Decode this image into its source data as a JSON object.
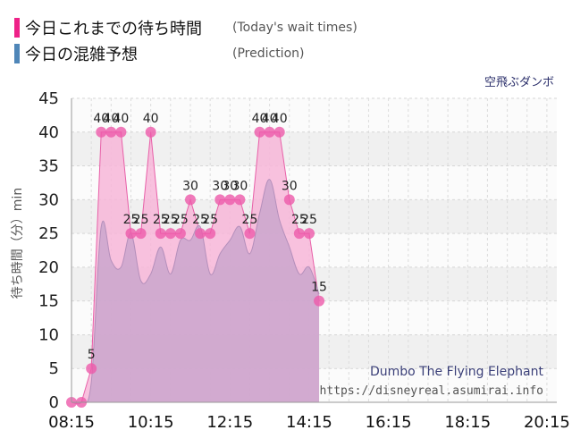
{
  "legend": [
    {
      "label": "今日これまでの待ち時間",
      "note": "(Today's wait times)",
      "color": "#ee2288"
    },
    {
      "label": "今日の混雑予想",
      "note": "(Prediction)",
      "color": "#4f86b8"
    }
  ],
  "attraction_ja": "空飛ぶダンボ",
  "watermark": {
    "title": "Dumbo The Flying Elephant",
    "url": "https://disneyreal.asumirai.info"
  },
  "colors": {
    "actual_fill": "#f7b6d8",
    "actual_line": "#e860a8",
    "actual_point": "#ee5aaa",
    "prediction_fill": "#c7a4cc",
    "plot_bg_light": "#fbfbfb",
    "plot_bg_dark": "#f0f0f0"
  },
  "chart_data": {
    "type": "area",
    "ylabel": "待ち時間（分）min",
    "ylim": [
      0,
      45
    ],
    "yticks": [
      0,
      5,
      10,
      15,
      20,
      25,
      30,
      35,
      40,
      45
    ],
    "xlim": [
      "08:15",
      "20:30"
    ],
    "xtick_labels": [
      "08:15",
      "10:15",
      "12:15",
      "14:15",
      "16:15",
      "18:15",
      "20:15"
    ],
    "grid": true,
    "series": [
      {
        "name": "今日これまでの待ち時間",
        "show_labels": true,
        "points": [
          [
            "08:15",
            0
          ],
          [
            "08:30",
            0
          ],
          [
            "08:45",
            5
          ],
          [
            "09:00",
            40
          ],
          [
            "09:15",
            40
          ],
          [
            "09:30",
            40
          ],
          [
            "09:45",
            25
          ],
          [
            "10:00",
            25
          ],
          [
            "10:15",
            40
          ],
          [
            "10:30",
            25
          ],
          [
            "10:45",
            25
          ],
          [
            "11:00",
            25
          ],
          [
            "11:15",
            30
          ],
          [
            "11:30",
            25
          ],
          [
            "11:45",
            25
          ],
          [
            "12:00",
            30
          ],
          [
            "12:15",
            30
          ],
          [
            "12:30",
            30
          ],
          [
            "12:45",
            25
          ],
          [
            "13:00",
            40
          ],
          [
            "13:15",
            40
          ],
          [
            "13:30",
            40
          ],
          [
            "13:45",
            30
          ],
          [
            "14:00",
            25
          ],
          [
            "14:15",
            25
          ],
          [
            "14:30",
            15
          ]
        ]
      },
      {
        "name": "今日の混雑予想",
        "show_labels": false,
        "points": [
          [
            "08:15",
            0
          ],
          [
            "08:30",
            0
          ],
          [
            "08:45",
            3
          ],
          [
            "09:00",
            26
          ],
          [
            "09:15",
            21
          ],
          [
            "09:30",
            20
          ],
          [
            "09:45",
            25
          ],
          [
            "10:00",
            18
          ],
          [
            "10:15",
            19
          ],
          [
            "10:30",
            23
          ],
          [
            "10:45",
            19
          ],
          [
            "11:00",
            24
          ],
          [
            "11:15",
            24
          ],
          [
            "11:30",
            26
          ],
          [
            "11:45",
            19
          ],
          [
            "12:00",
            22
          ],
          [
            "12:15",
            24
          ],
          [
            "12:30",
            26
          ],
          [
            "12:45",
            22
          ],
          [
            "13:00",
            28
          ],
          [
            "13:15",
            33
          ],
          [
            "13:30",
            27
          ],
          [
            "13:45",
            23
          ],
          [
            "14:00",
            19
          ],
          [
            "14:15",
            20
          ],
          [
            "14:30",
            16
          ]
        ]
      }
    ]
  }
}
